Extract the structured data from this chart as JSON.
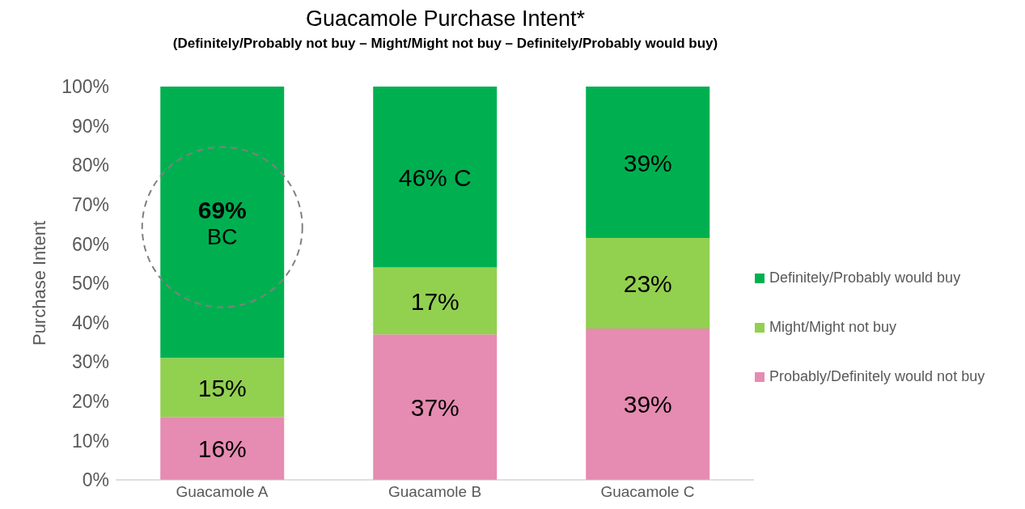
{
  "chart_data": {
    "type": "bar",
    "title": "Guacamole Purchase Intent*",
    "subtitle": "(Definitely/Probably not buy – Might/Might not buy – Definitely/Probably would buy)",
    "ylabel": "Purchase Intent",
    "categories": [
      "Guacamole A",
      "Guacamole B",
      "Guacamole C"
    ],
    "series": [
      {
        "name": "Probably/Definitely would not buy",
        "color": "#e68bb1",
        "values": [
          16,
          37,
          38.5
        ],
        "value_labels": [
          "16%",
          "37%",
          "39%"
        ]
      },
      {
        "name": "Might/Might not buy",
        "color": "#92d050",
        "values": [
          15,
          17,
          23
        ],
        "value_labels": [
          "15%",
          "17%",
          "23%"
        ]
      },
      {
        "name": "Definitely/Probably would buy",
        "color": "#00b050",
        "values": [
          69,
          46,
          38.5
        ],
        "value_labels": [
          "69%\nBC",
          "46% C",
          "39%"
        ]
      }
    ],
    "stacked": true,
    "ylim": [
      0,
      100
    ],
    "yticks": [
      {
        "value": 0,
        "label": "0%"
      },
      {
        "value": 10,
        "label": "10%"
      },
      {
        "value": 20,
        "label": "20%"
      },
      {
        "value": 30,
        "label": "30%"
      },
      {
        "value": 40,
        "label": "40%"
      },
      {
        "value": 50,
        "label": "50%"
      },
      {
        "value": 60,
        "label": "60%"
      },
      {
        "value": 70,
        "label": "70%"
      },
      {
        "value": 80,
        "label": "80%"
      },
      {
        "value": 90,
        "label": "90%"
      },
      {
        "value": 100,
        "label": "100%"
      }
    ],
    "grid": false,
    "legend": "right"
  }
}
